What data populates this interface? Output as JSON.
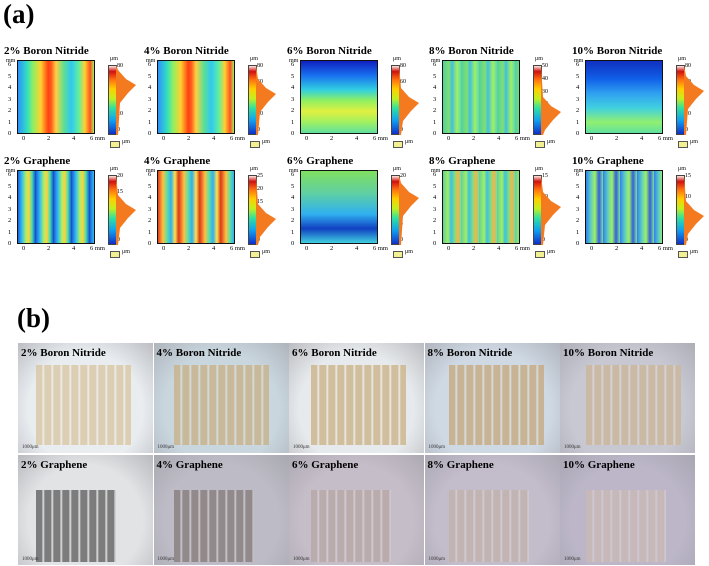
{
  "panel_a_label": "(a)",
  "panel_b_label": "(b)",
  "axis": {
    "y_unit": "mm",
    "x_unit": "6 mm",
    "y_ticks": [
      "6",
      "5",
      "4",
      "3",
      "2",
      "1",
      "0"
    ],
    "x_ticks": [
      "0",
      "2",
      "4"
    ],
    "cbar_unit": "μm",
    "legend": "μm"
  },
  "maps": [
    {
      "title": "2% Boron Nitride",
      "cbar_ticks": [
        "80",
        "60",
        "40",
        "20",
        "0"
      ],
      "kind": "bn2"
    },
    {
      "title": "4% Boron Nitride",
      "cbar_ticks": [
        "80",
        "60",
        "40",
        "20",
        "0"
      ],
      "kind": "bn2"
    },
    {
      "title": "6% Boron Nitride",
      "cbar_ticks": [
        "80",
        "60",
        "40",
        "20",
        "0"
      ],
      "kind": "bn6"
    },
    {
      "title": "8% Boron Nitride",
      "cbar_ticks": [
        "50",
        "40",
        "30",
        "20",
        "10",
        "0"
      ],
      "kind": "bn8"
    },
    {
      "title": "10% Boron Nitride",
      "cbar_ticks": [
        "80",
        "60",
        "40",
        "20",
        "0"
      ],
      "kind": "bn10"
    },
    {
      "title": "2% Graphene",
      "cbar_ticks": [
        "20",
        "15",
        "10",
        "5",
        "0"
      ],
      "kind": "g"
    },
    {
      "title": "4% Graphene",
      "cbar_ticks": [
        "25",
        "20",
        "15",
        "10",
        "5",
        "0"
      ],
      "kind": "g4"
    },
    {
      "title": "6% Graphene",
      "cbar_ticks": [
        "20",
        "15",
        "10",
        "5",
        "0"
      ],
      "kind": "g6"
    },
    {
      "title": "8% Graphene",
      "cbar_ticks": [
        "15",
        "10",
        "5",
        "0"
      ],
      "kind": "g8"
    },
    {
      "title": "10% Graphene",
      "cbar_ticks": [
        "15",
        "10",
        "5",
        "0"
      ],
      "kind": "g10"
    }
  ],
  "photos": [
    {
      "title": "2% Boron Nitride",
      "bg": "#e9edf0",
      "tone": "#d9c8a8"
    },
    {
      "title": "4% Boron Nitride",
      "bg": "#c9d6de",
      "tone": "#c8b48f"
    },
    {
      "title": "6% Boron Nitride",
      "bg": "#e7eaec",
      "tone": "#cdb68e"
    },
    {
      "title": "8% Boron Nitride",
      "bg": "#cfd9e4",
      "tone": "#c6ad86"
    },
    {
      "title": "10% Boron Nitride",
      "bg": "#c7c8d2",
      "tone": "#cbb89d"
    },
    {
      "title": "2% Graphene",
      "bg": "#e2e3e5",
      "tone": "#6a6a6a"
    },
    {
      "title": "4% Graphene",
      "bg": "#bdbcc6",
      "tone": "#8a8080"
    },
    {
      "title": "6% Graphene",
      "bg": "#c5bdc8",
      "tone": "#b8a8a8"
    },
    {
      "title": "8% Graphene",
      "bg": "#c3bccb",
      "tone": "#c2b2ae"
    },
    {
      "title": "10% Graphene",
      "bg": "#bcb6c8",
      "tone": "#c9b8b6"
    }
  ],
  "photo_scale_label": "1000μm"
}
